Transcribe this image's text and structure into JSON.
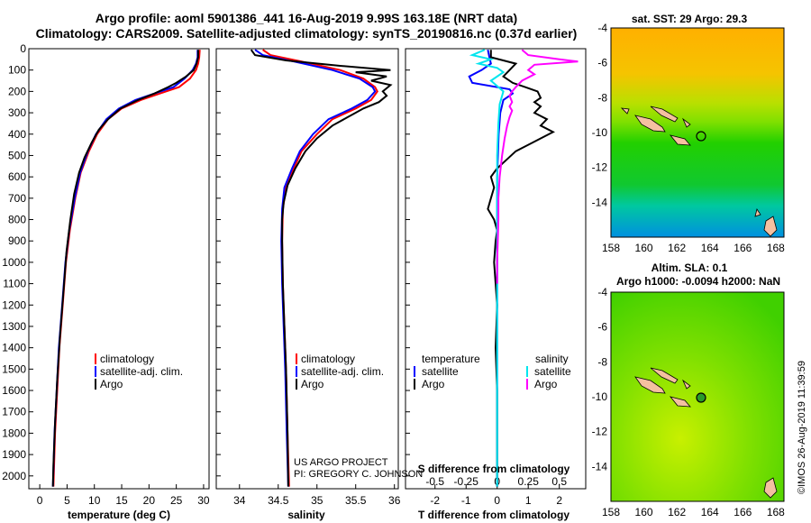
{
  "header": {
    "line1": "Argo profile: aoml 5901386_441 16-Aug-2019 9.99S 163.18E (NRT data)",
    "line2": "Climatology: CARS2009. Satellite-adjusted climatology: synTS_20190816.nc (0.37d earlier)"
  },
  "credits": {
    "project": "US ARGO PROJECT",
    "pi": "PI: GREGORY C. JOHNSON",
    "watermark": "©IMOS 26-Aug-2019 11:39:59"
  },
  "colors": {
    "climatology": "#ff0000",
    "satellite": "#0000ff",
    "argo": "#000000",
    "sal_satellite": "#00e5ee",
    "sal_argo": "#ff00ff"
  },
  "chart_data": [
    {
      "type": "line",
      "id": "temperature",
      "xlabel": "temperature (deg C)",
      "ylabel": "",
      "xlim": [
        -2,
        31
      ],
      "ylim": [
        2060,
        0
      ],
      "xticks": [
        "0",
        "5",
        "10",
        "15",
        "20",
        "25",
        "30"
      ],
      "yticks": [
        "0",
        "100",
        "200",
        "300",
        "400",
        "500",
        "600",
        "700",
        "800",
        "900",
        "1000",
        "1100",
        "1200",
        "1300",
        "1400",
        "1500",
        "1600",
        "1700",
        "1800",
        "1900",
        "2000"
      ],
      "legend": [
        "climatology",
        "satellite-adj. clim.",
        "Argo"
      ],
      "series": [
        {
          "name": "climatology",
          "color": "#ff0000",
          "points": [
            [
              29.3,
              5
            ],
            [
              29.2,
              40
            ],
            [
              29.0,
              70
            ],
            [
              28.6,
              100
            ],
            [
              27.5,
              140
            ],
            [
              25.5,
              180
            ],
            [
              22,
              210
            ],
            [
              18.5,
              240
            ],
            [
              15,
              280
            ],
            [
              12.5,
              330
            ],
            [
              10.5,
              400
            ],
            [
              9,
              480
            ],
            [
              7.5,
              580
            ],
            [
              6.5,
              700
            ],
            [
              5.5,
              850
            ],
            [
              4.8,
              1000
            ],
            [
              4.2,
              1200
            ],
            [
              3.6,
              1400
            ],
            [
              3.2,
              1600
            ],
            [
              2.8,
              1800
            ],
            [
              2.5,
              2050
            ]
          ]
        },
        {
          "name": "satellite-adj. clim.",
          "color": "#0000ff",
          "points": [
            [
              28.9,
              5
            ],
            [
              28.9,
              40
            ],
            [
              28.6,
              70
            ],
            [
              28.0,
              100
            ],
            [
              26.5,
              140
            ],
            [
              24.5,
              180
            ],
            [
              21,
              210
            ],
            [
              17.5,
              240
            ],
            [
              14.5,
              280
            ],
            [
              12.2,
              330
            ],
            [
              10.3,
              400
            ],
            [
              8.8,
              480
            ],
            [
              7.4,
              580
            ],
            [
              6.4,
              700
            ],
            [
              5.4,
              850
            ],
            [
              4.7,
              1000
            ],
            [
              4.1,
              1200
            ],
            [
              3.5,
              1400
            ],
            [
              3.1,
              1600
            ],
            [
              2.7,
              1800
            ],
            [
              2.4,
              2050
            ]
          ]
        },
        {
          "name": "Argo",
          "color": "#000000",
          "points": [
            [
              29.0,
              5
            ],
            [
              29.0,
              40
            ],
            [
              28.7,
              70
            ],
            [
              28.2,
              100
            ],
            [
              26.8,
              130
            ],
            [
              25,
              160
            ],
            [
              23.5,
              180
            ],
            [
              21,
              210
            ],
            [
              18,
              240
            ],
            [
              14.8,
              280
            ],
            [
              12.5,
              330
            ],
            [
              10.8,
              380
            ],
            [
              9.5,
              440
            ],
            [
              8.2,
              510
            ],
            [
              7.2,
              580
            ],
            [
              6.3,
              680
            ],
            [
              5.6,
              800
            ],
            [
              4.9,
              950
            ],
            [
              4.3,
              1150
            ],
            [
              3.7,
              1350
            ],
            [
              3.2,
              1550
            ],
            [
              2.8,
              1750
            ],
            [
              2.5,
              1950
            ],
            [
              2.4,
              2050
            ]
          ]
        }
      ]
    },
    {
      "type": "line",
      "id": "salinity",
      "xlabel": "salinity",
      "xlim": [
        33.7,
        36.05
      ],
      "ylim": [
        2060,
        0
      ],
      "xticks": [
        "34",
        "34.5",
        "35",
        "35.5",
        "36"
      ],
      "legend": [
        "climatology",
        "satellite-adj. clim.",
        "Argo"
      ],
      "series": [
        {
          "name": "climatology",
          "color": "#ff0000",
          "points": [
            [
              34.3,
              5
            ],
            [
              34.4,
              30
            ],
            [
              34.8,
              60
            ],
            [
              35.3,
              100
            ],
            [
              35.6,
              140
            ],
            [
              35.75,
              180
            ],
            [
              35.78,
              200
            ],
            [
              35.7,
              240
            ],
            [
              35.5,
              280
            ],
            [
              35.2,
              330
            ],
            [
              35.0,
              400
            ],
            [
              34.8,
              480
            ],
            [
              34.7,
              560
            ],
            [
              34.6,
              650
            ],
            [
              34.56,
              750
            ],
            [
              34.55,
              900
            ],
            [
              34.56,
              1100
            ],
            [
              34.58,
              1300
            ],
            [
              34.6,
              1500
            ],
            [
              34.62,
              1800
            ],
            [
              34.64,
              2050
            ]
          ]
        },
        {
          "name": "satellite-adj. clim.",
          "color": "#0000ff",
          "points": [
            [
              34.2,
              5
            ],
            [
              34.3,
              30
            ],
            [
              34.7,
              60
            ],
            [
              35.2,
              100
            ],
            [
              35.55,
              140
            ],
            [
              35.72,
              180
            ],
            [
              35.75,
              200
            ],
            [
              35.65,
              240
            ],
            [
              35.45,
              280
            ],
            [
              35.15,
              330
            ],
            [
              34.95,
              400
            ],
            [
              34.78,
              480
            ],
            [
              34.68,
              560
            ],
            [
              34.58,
              650
            ],
            [
              34.55,
              750
            ],
            [
              34.54,
              900
            ],
            [
              34.55,
              1100
            ],
            [
              34.57,
              1300
            ],
            [
              34.59,
              1500
            ],
            [
              34.61,
              1800
            ],
            [
              34.63,
              2050
            ]
          ]
        },
        {
          "name": "Argo",
          "color": "#000000",
          "points": [
            [
              34.15,
              5
            ],
            [
              34.2,
              30
            ],
            [
              34.6,
              55
            ],
            [
              35.3,
              80
            ],
            [
              35.95,
              100
            ],
            [
              35.5,
              110
            ],
            [
              35.9,
              130
            ],
            [
              35.7,
              150
            ],
            [
              35.95,
              170
            ],
            [
              35.85,
              200
            ],
            [
              35.9,
              220
            ],
            [
              35.8,
              250
            ],
            [
              35.6,
              280
            ],
            [
              35.4,
              320
            ],
            [
              35.2,
              360
            ],
            [
              35.0,
              420
            ],
            [
              34.85,
              480
            ],
            [
              34.72,
              560
            ],
            [
              34.62,
              640
            ],
            [
              34.57,
              720
            ],
            [
              34.55,
              800
            ],
            [
              34.55,
              900
            ],
            [
              34.56,
              1100
            ],
            [
              34.58,
              1300
            ],
            [
              34.6,
              1500
            ],
            [
              34.62,
              1800
            ],
            [
              34.63,
              2050
            ]
          ]
        }
      ]
    },
    {
      "type": "line",
      "id": "differences",
      "xlabel": "T difference from climatology",
      "xlabel_top": "S difference from climatology",
      "xlim": [
        -2.95,
        2.85
      ],
      "ylim": [
        2060,
        0
      ],
      "xticks": [
        "-2",
        "-1",
        "0",
        "1",
        "2"
      ],
      "xticks_salinity": [
        "-0.5",
        "-0.25",
        "0",
        "0.25",
        "0.5"
      ],
      "legend_temperature_title": "temperature",
      "legend_salinity_title": "salinity",
      "legend": [
        "satellite",
        "Argo"
      ],
      "series": [
        {
          "name": "T satellite",
          "color": "#0000ff",
          "points": [
            [
              -0.3,
              5
            ],
            [
              -0.25,
              40
            ],
            [
              -0.2,
              70
            ],
            [
              -0.5,
              100
            ],
            [
              -0.9,
              130
            ],
            [
              -0.8,
              160
            ],
            [
              0.4,
              190
            ],
            [
              0.5,
              210
            ],
            [
              0.2,
              240
            ],
            [
              0.1,
              300
            ],
            [
              0.05,
              400
            ],
            [
              0.0,
              600
            ],
            [
              0.0,
              900
            ],
            [
              0.0,
              1200
            ],
            [
              0.0,
              1600
            ],
            [
              0.0,
              2050
            ]
          ]
        },
        {
          "name": "T Argo",
          "color": "#000000",
          "points": [
            [
              -0.2,
              5
            ],
            [
              -0.2,
              40
            ],
            [
              0.6,
              70
            ],
            [
              0.4,
              100
            ],
            [
              0.2,
              130
            ],
            [
              0.5,
              160
            ],
            [
              0.9,
              180
            ],
            [
              1.3,
              200
            ],
            [
              1.4,
              230
            ],
            [
              1.2,
              250
            ],
            [
              1.4,
              270
            ],
            [
              1.2,
              300
            ],
            [
              1.6,
              330
            ],
            [
              1.4,
              360
            ],
            [
              1.8,
              390
            ],
            [
              1.4,
              420
            ],
            [
              1.0,
              450
            ],
            [
              0.6,
              480
            ],
            [
              0.3,
              520
            ],
            [
              0.0,
              560
            ],
            [
              -0.2,
              600
            ],
            [
              -0.1,
              650
            ],
            [
              -0.2,
              700
            ],
            [
              -0.3,
              750
            ],
            [
              -0.1,
              800
            ],
            [
              0.0,
              850
            ],
            [
              -0.05,
              900
            ],
            [
              -0.1,
              1000
            ],
            [
              0.0,
              1200
            ],
            [
              -0.05,
              1400
            ],
            [
              0.0,
              1600
            ],
            [
              0.0,
              2050
            ]
          ]
        },
        {
          "name": "S satellite",
          "color": "#00e5ee",
          "points": [
            [
              -0.1,
              5
            ],
            [
              -0.2,
              30
            ],
            [
              -0.05,
              50
            ],
            [
              -0.15,
              70
            ],
            [
              0.0,
              90
            ],
            [
              0.05,
              110
            ],
            [
              -0.05,
              150
            ],
            [
              0.05,
              200
            ],
            [
              0.02,
              260
            ],
            [
              0.01,
              350
            ],
            [
              0.0,
              500
            ],
            [
              0.0,
              800
            ],
            [
              0.0,
              1200
            ],
            [
              0.0,
              1600
            ],
            [
              0.0,
              2050
            ]
          ]
        },
        {
          "name": "S Argo",
          "color": "#ff00ff",
          "points": [
            [
              0.2,
              5
            ],
            [
              0.25,
              30
            ],
            [
              0.5,
              50
            ],
            [
              0.65,
              60
            ],
            [
              0.3,
              75
            ],
            [
              0.25,
              100
            ],
            [
              0.3,
              120
            ],
            [
              0.2,
              150
            ],
            [
              0.15,
              180
            ],
            [
              0.12,
              200
            ],
            [
              0.1,
              220
            ],
            [
              0.12,
              250
            ],
            [
              0.1,
              270
            ],
            [
              0.12,
              290
            ],
            [
              0.1,
              320
            ],
            [
              0.08,
              360
            ],
            [
              0.06,
              420
            ],
            [
              0.04,
              500
            ],
            [
              0.02,
              600
            ],
            [
              0.01,
              700
            ],
            [
              0.01,
              800
            ],
            [
              0.0,
              1000
            ],
            [
              0.0,
              1100
            ]
          ]
        }
      ]
    },
    {
      "type": "heatmap",
      "id": "sst-map",
      "title": "sat. SST: 29 Argo: 29.3",
      "xticks": [
        "158",
        "160",
        "162",
        "164",
        "166",
        "168"
      ],
      "yticks": [
        "-4",
        "-6",
        "-8",
        "-10",
        "-12",
        "-14"
      ],
      "xlim": [
        158,
        168.5
      ],
      "ylim": [
        -4,
        -16
      ],
      "argo_position": [
        163.18,
        -9.99
      ]
    },
    {
      "type": "heatmap",
      "id": "sla-map",
      "title": "Altim. SLA: 0.1",
      "subtitle": "Argo h1000: -0.0094 h2000: NaN",
      "xticks": [
        "158",
        "160",
        "162",
        "164",
        "166",
        "168"
      ],
      "yticks": [
        "-4",
        "-6",
        "-8",
        "-10",
        "-12",
        "-14"
      ],
      "xlim": [
        158,
        168.5
      ],
      "ylim": [
        -4,
        -16
      ],
      "argo_position": [
        163.18,
        -9.99
      ]
    }
  ]
}
